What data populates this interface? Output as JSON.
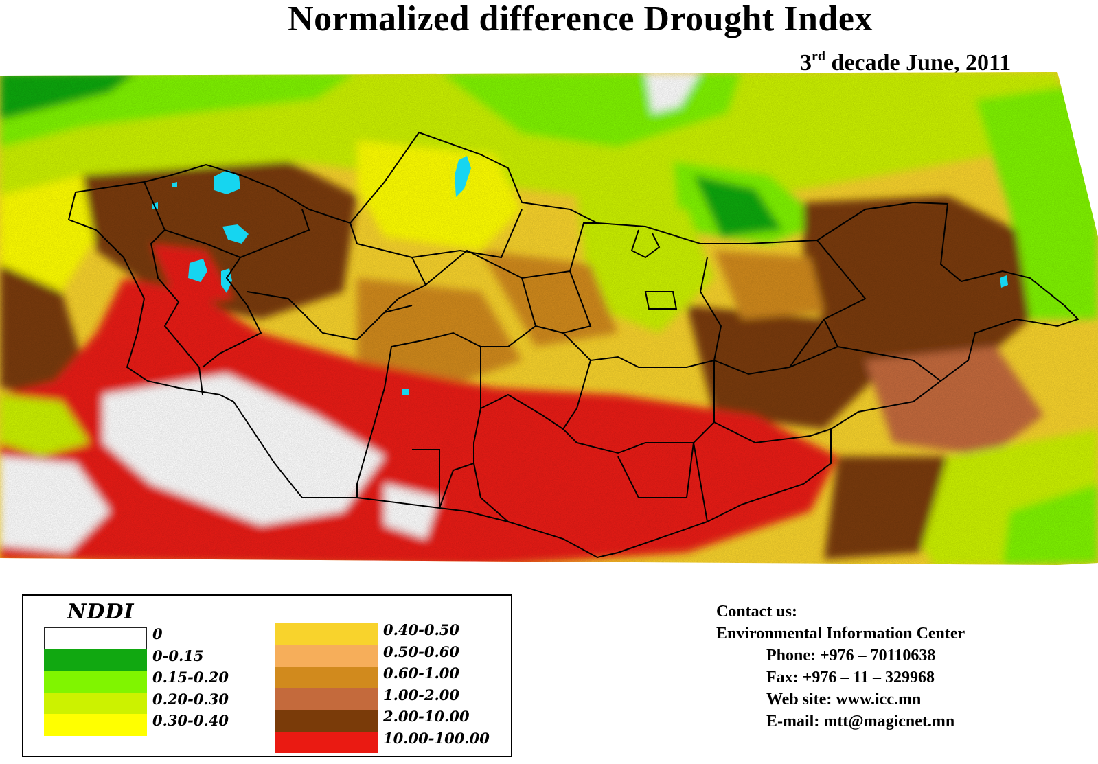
{
  "title": "Normalized difference Drought Index",
  "subtitle": {
    "ordinal": "3",
    "suffix": "rd",
    "rest": " decade June, 2011"
  },
  "legend": {
    "title": "NDDI",
    "classes": [
      {
        "label": "0",
        "color": "#ffffff"
      },
      {
        "label": "0-0.15",
        "color": "#11a811"
      },
      {
        "label": "0.15-0.20",
        "color": "#80f500"
      },
      {
        "label": "0.20-0.30",
        "color": "#ccf200"
      },
      {
        "label": "0.30-0.40",
        "color": "#ffff00"
      },
      {
        "label": "0.40-0.50",
        "color": "#f8d32c"
      },
      {
        "label": "0.50-0.60",
        "color": "#f6ae5a"
      },
      {
        "label": "0.60-1.00",
        "color": "#d18a1d"
      },
      {
        "label": "1.00-2.00",
        "color": "#c46a3c"
      },
      {
        "label": "2.00-10.00",
        "color": "#7a3b09"
      },
      {
        "label": "10.00-100.00",
        "color": "#ea1a12"
      }
    ]
  },
  "map_colors": {
    "water": "#16d5f0",
    "boundary": "#000000"
  },
  "contact": {
    "heading": "Contact us:",
    "org": "Environmental Information Center",
    "phone": "Phone: +976 – 70110638",
    "fax": "Fax: +976 – 11 – 329968",
    "website": "Web site: www.icc.mn",
    "email": "E-mail: mtt@magicnet.mn"
  }
}
